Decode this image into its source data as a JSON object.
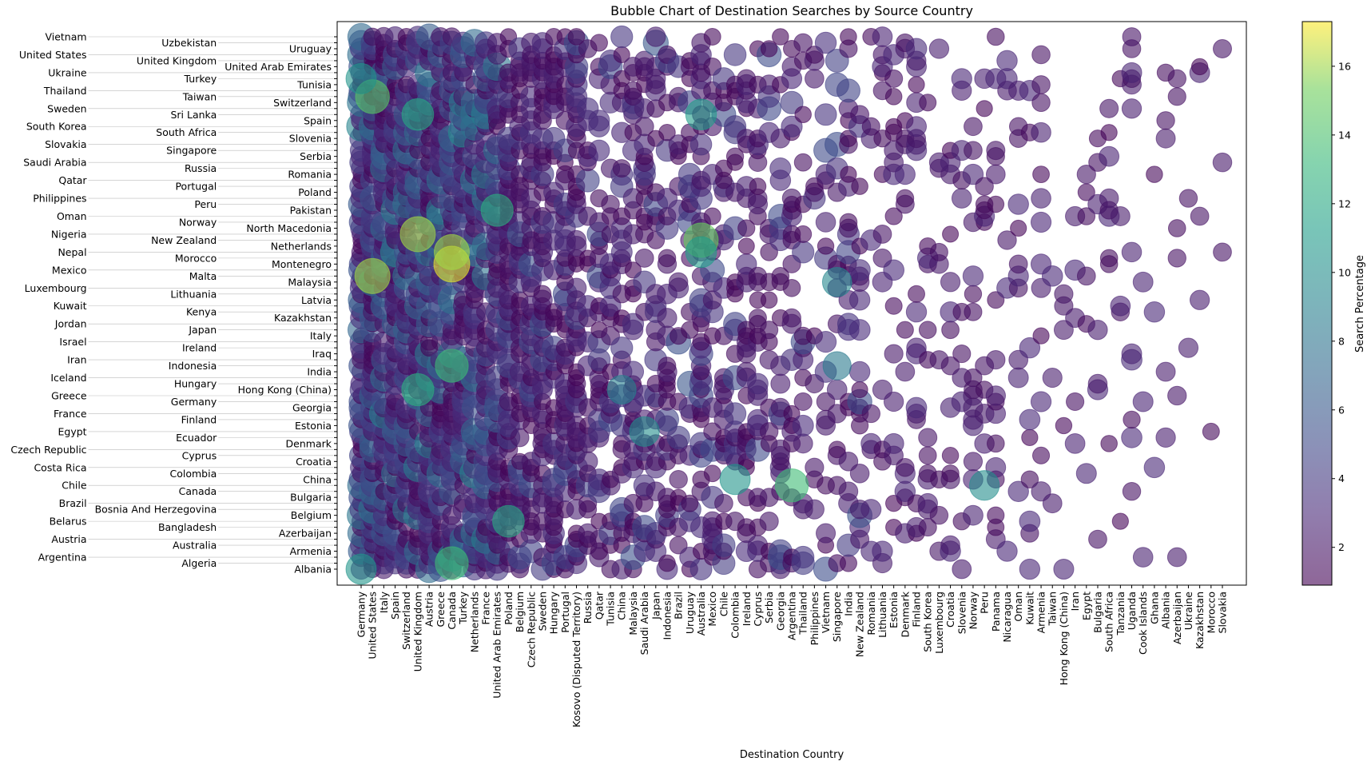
{
  "chart_data": {
    "type": "scatter",
    "subtype": "bubble",
    "title": "Bubble Chart of Destination Searches by Source Country",
    "xlabel": "Destination Country",
    "ylabel": "",
    "colorbar": {
      "label": "Search Percentage",
      "colormap": "viridis",
      "range": [
        0.9,
        17.3
      ],
      "ticks": [
        2,
        4,
        6,
        8,
        10,
        12,
        14,
        16
      ]
    },
    "grid": false,
    "x_categories": [
      "Germany",
      "United States",
      "Italy",
      "Spain",
      "Switzerland",
      "United Kingdom",
      "Austria",
      "Greece",
      "Canada",
      "Turkey",
      "Netherlands",
      "France",
      "United Arab Emirates",
      "Poland",
      "Belgium",
      "Czech Republic",
      "Sweden",
      "Hungary",
      "Portugal",
      "Kosovo (Disputed Territory)",
      "Russia",
      "Qatar",
      "Tunisia",
      "China",
      "Malaysia",
      "Saudi Arabia",
      "Japan",
      "Indonesia",
      "Brazil",
      "Uruguay",
      "Australia",
      "Mexico",
      "Chile",
      "Colombia",
      "Ireland",
      "Cyprus",
      "Serbia",
      "Georgia",
      "Argentina",
      "Thailand",
      "Philippines",
      "Vietnam",
      "Singapore",
      "India",
      "New Zealand",
      "Romania",
      "Lithuania",
      "Estonia",
      "Denmark",
      "Finland",
      "South Korea",
      "Luxembourg",
      "Croatia",
      "Slovenia",
      "Norway",
      "Peru",
      "Panama",
      "Nicaragua",
      "Oman",
      "Kuwait",
      "Armenia",
      "Taiwan",
      "Hong Kong (China)",
      "Iran",
      "Egypt",
      "Bulgaria",
      "South Africa",
      "Tanzania",
      "Uganda",
      "Cook Islands",
      "Ghana",
      "Albania",
      "Azerbaijan",
      "Ukraine",
      "Kazakhstan",
      "Morocco",
      "Slovakia"
    ],
    "y_categories": [
      "Albania",
      "Algeria",
      "Argentina",
      "Armenia",
      "Australia",
      "Austria",
      "Azerbaijan",
      "Bangladesh",
      "Belarus",
      "Belgium",
      "Bosnia And Herzegovina",
      "Brazil",
      "Bulgaria",
      "Canada",
      "Chile",
      "China",
      "Colombia",
      "Costa Rica",
      "Croatia",
      "Cyprus",
      "Czech Republic",
      "Denmark",
      "Ecuador",
      "Egypt",
      "Estonia",
      "Finland",
      "France",
      "Georgia",
      "Germany",
      "Greece",
      "Hong Kong (China)",
      "Hungary",
      "Iceland",
      "India",
      "Indonesia",
      "Iran",
      "Iraq",
      "Ireland",
      "Israel",
      "Italy",
      "Japan",
      "Jordan",
      "Kazakhstan",
      "Kenya",
      "Kuwait",
      "Latvia",
      "Lithuania",
      "Luxembourg",
      "Malaysia",
      "Malta",
      "Mexico",
      "Montenegro",
      "Morocco",
      "Nepal",
      "Netherlands",
      "New Zealand",
      "Nigeria",
      "North Macedonia",
      "Norway",
      "Oman",
      "Pakistan",
      "Peru",
      "Philippines",
      "Poland",
      "Portugal",
      "Qatar",
      "Romania",
      "Russia",
      "Saudi Arabia",
      "Serbia",
      "Singapore",
      "Slovakia",
      "Slovenia",
      "South Africa",
      "South Korea",
      "Spain",
      "Sri Lanka",
      "Sweden",
      "Switzerland",
      "Taiwan",
      "Thailand",
      "Tunisia",
      "Turkey",
      "Ukraine",
      "United Arab Emirates",
      "United Kingdom",
      "United States",
      "Uruguay",
      "Uzbekistan",
      "Vietnam"
    ],
    "notable_points": [
      {
        "x": "United States",
        "y": "Malta",
        "value": 16.0
      },
      {
        "x": "United States",
        "y": "Taiwan",
        "value": 14.5
      },
      {
        "x": "United Kingdom",
        "y": "Nigeria",
        "value": 16.0
      },
      {
        "x": "Canada",
        "y": "Montenegro",
        "value": 17.0
      },
      {
        "x": "Canada",
        "y": "Nepal",
        "value": 16.0
      },
      {
        "x": "Canada",
        "y": "Indonesia",
        "value": 13.5
      },
      {
        "x": "Canada",
        "y": "Algeria",
        "value": 13.5
      },
      {
        "x": "Germany",
        "y": "Albania",
        "value": 10.5
      },
      {
        "x": "Germany",
        "y": "Turkey",
        "value": 10.5
      },
      {
        "x": "United Kingdom",
        "y": "Sri Lanka",
        "value": 12.0
      },
      {
        "x": "United Kingdom",
        "y": "Hong Kong (China)",
        "value": 12.5
      },
      {
        "x": "United Arab Emirates",
        "y": "Pakistan",
        "value": 12.5
      },
      {
        "x": "Poland",
        "y": "Belarus",
        "value": 12.0
      },
      {
        "x": "Australia",
        "y": "New Zealand",
        "value": 15.0
      },
      {
        "x": "Australia",
        "y": "Nepal",
        "value": 11.0
      },
      {
        "x": "Australia",
        "y": "Sri Lanka",
        "value": 11.0
      },
      {
        "x": "Argentina",
        "y": "Chile",
        "value": 13.5
      },
      {
        "x": "Colombia",
        "y": "China",
        "value": 10.5
      },
      {
        "x": "Saudi Arabia",
        "y": "Egypt",
        "value": 10.0
      },
      {
        "x": "China",
        "y": "Hong Kong (China)",
        "value": 9.0
      },
      {
        "x": "Peru",
        "y": "Chile",
        "value": 10.0
      },
      {
        "x": "Singapore",
        "y": "Malaysia",
        "value": 9.5
      },
      {
        "x": "Singapore",
        "y": "Indonesia",
        "value": 8.5
      }
    ]
  }
}
